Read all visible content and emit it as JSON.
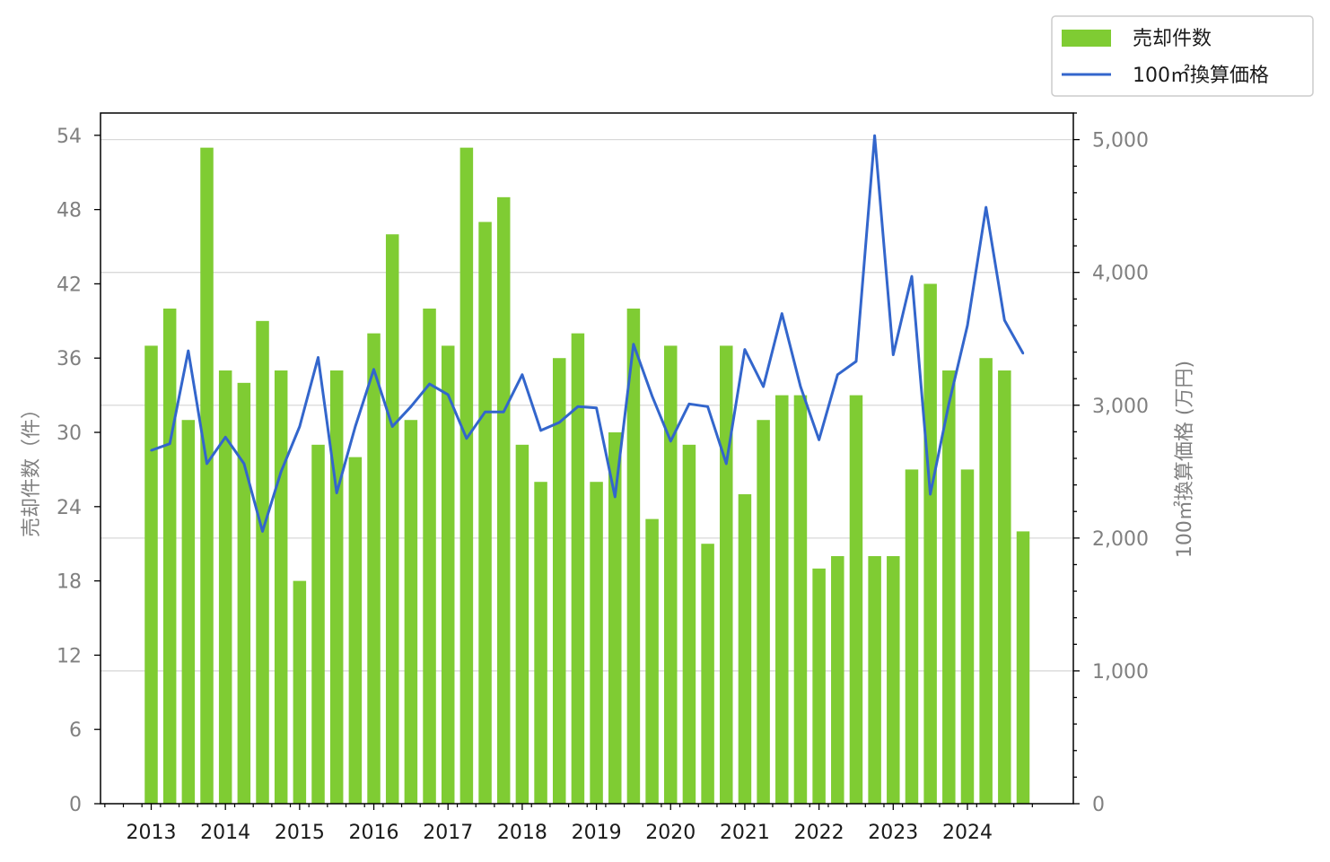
{
  "chart_data": {
    "type": "bar",
    "x": [
      "2013-Q1",
      "2013-Q2",
      "2013-Q3",
      "2013-Q4",
      "2014-Q1",
      "2014-Q2",
      "2014-Q3",
      "2014-Q4",
      "2015-Q1",
      "2015-Q2",
      "2015-Q3",
      "2015-Q4",
      "2016-Q1",
      "2016-Q2",
      "2016-Q3",
      "2016-Q4",
      "2017-Q1",
      "2017-Q2",
      "2017-Q3",
      "2017-Q4",
      "2018-Q1",
      "2018-Q2",
      "2018-Q3",
      "2018-Q4",
      "2019-Q1",
      "2019-Q2",
      "2019-Q3",
      "2019-Q4",
      "2020-Q1",
      "2020-Q2",
      "2020-Q3",
      "2020-Q4",
      "2021-Q1",
      "2021-Q2",
      "2021-Q3",
      "2021-Q4",
      "2022-Q1",
      "2022-Q2",
      "2022-Q3",
      "2022-Q4",
      "2023-Q1",
      "2023-Q2",
      "2023-Q3",
      "2023-Q4",
      "2024-Q1",
      "2024-Q2",
      "2024-Q3",
      "2024-Q4"
    ],
    "series": [
      {
        "name": "売却件数",
        "kind": "bar",
        "axis": "left",
        "color": "#7fcc33",
        "values": [
          37,
          40,
          31,
          53,
          35,
          34,
          39,
          35,
          18,
          29,
          35,
          28,
          38,
          46,
          31,
          40,
          37,
          53,
          47,
          49,
          29,
          26,
          36,
          38,
          26,
          30,
          40,
          23,
          37,
          29,
          21,
          37,
          25,
          31,
          33,
          33,
          19,
          20,
          33,
          20,
          20,
          27,
          42,
          35,
          27,
          36,
          35,
          22
        ]
      },
      {
        "name": "100㎡換算価格",
        "kind": "line",
        "axis": "right",
        "color": "#3366cc",
        "values": [
          2660,
          2710,
          3410,
          2560,
          2760,
          2560,
          2050,
          2500,
          2840,
          3360,
          2340,
          2840,
          3270,
          2840,
          2990,
          3160,
          3080,
          2750,
          2950,
          2950,
          3230,
          2810,
          2870,
          2990,
          2980,
          2310,
          3460,
          3070,
          2730,
          3010,
          2990,
          2560,
          3420,
          3140,
          3690,
          3140,
          2740,
          3230,
          3330,
          5030,
          3380,
          3970,
          2330,
          3010,
          3600,
          4490,
          3640,
          3390
        ]
      }
    ],
    "xticks": [
      "2013",
      "2014",
      "2015",
      "2016",
      "2017",
      "2018",
      "2019",
      "2020",
      "2021",
      "2022",
      "2023",
      "2024"
    ],
    "ylabel_left": "売却件数（件）",
    "ylabel_right": "100㎡換算価格 (万円)",
    "yticks_left": [
      "0",
      "6",
      "12",
      "18",
      "24",
      "30",
      "36",
      "42",
      "48",
      "54"
    ],
    "yticks_right": [
      "0",
      "1,000",
      "2,000",
      "3,000",
      "4,000",
      "5,000"
    ],
    "ylim_left": [
      0,
      55.8
    ],
    "ylim_right": [
      0,
      5200
    ],
    "grid": "horizontal, right axis",
    "legend": {
      "position": "top-right",
      "entries": [
        "売却件数",
        "100㎡換算価格"
      ]
    }
  }
}
